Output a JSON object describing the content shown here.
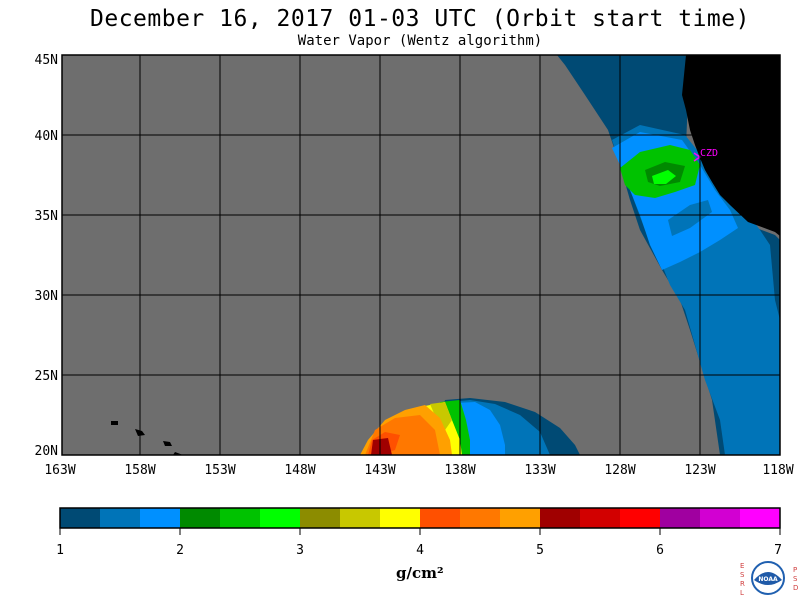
{
  "title": "December 16, 2017  01-03 UTC  (Orbit start time)",
  "subtitle": "Water Vapor (Wentz algorithm)",
  "map": {
    "lon_range": [
      -163,
      -118
    ],
    "lat_range": [
      20,
      45
    ],
    "lon_ticks": [
      "163W",
      "158W",
      "153W",
      "148W",
      "143W",
      "138W",
      "133W",
      "128W",
      "123W",
      "118W"
    ],
    "lat_ticks": [
      "45N",
      "40N",
      "35N",
      "30N",
      "25N",
      "20N"
    ],
    "station_label": "CZD",
    "no_data_color": "#6e6e6e",
    "land_color": "#000000"
  },
  "colorbar": {
    "unit": "g/cm²",
    "labels": [
      "1",
      "2",
      "3",
      "4",
      "5",
      "6",
      "7"
    ],
    "colors": [
      "#004a74",
      "#0074b8",
      "#0090ff",
      "#008a00",
      "#00c200",
      "#00ff00",
      "#8c8c00",
      "#c8c800",
      "#ffff00",
      "#ff5000",
      "#ff7800",
      "#ffa000",
      "#a00000",
      "#d20000",
      "#ff0000",
      "#a000a0",
      "#d200d2",
      "#ff00ff"
    ]
  },
  "logo": {
    "left_letters": "ESRL",
    "right_letters": "PSD",
    "center_text": "NOAA"
  }
}
